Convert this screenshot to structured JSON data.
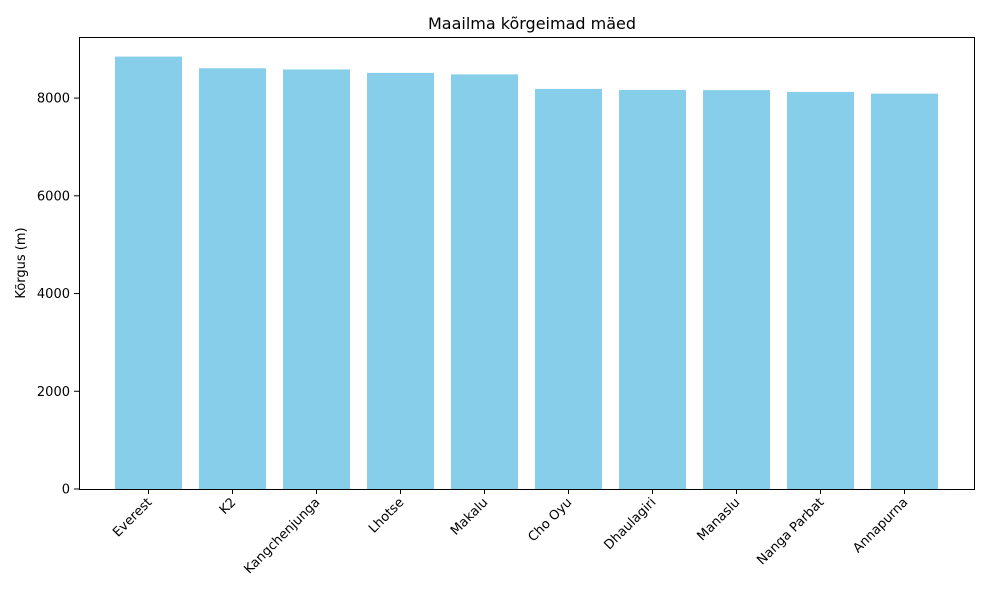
{
  "chart_data": {
    "type": "bar",
    "title": "Maailma kõrgeimad mäed",
    "xlabel": "",
    "ylabel": "Kõrgus (m)",
    "categories": [
      "Everest",
      "K2",
      "Kangchenjunga",
      "Lhotse",
      "Makalu",
      "Cho Oyu",
      "Dhaulagiri",
      "Manaslu",
      "Nanga Parbat",
      "Annapurna"
    ],
    "values": [
      8849,
      8611,
      8586,
      8516,
      8485,
      8188,
      8167,
      8163,
      8126,
      8091
    ],
    "ylim": [
      0,
      9250
    ],
    "yticks": [
      0,
      2000,
      4000,
      6000,
      8000
    ],
    "bar_color": "#87ceeb",
    "grid": false,
    "legend": "none"
  }
}
